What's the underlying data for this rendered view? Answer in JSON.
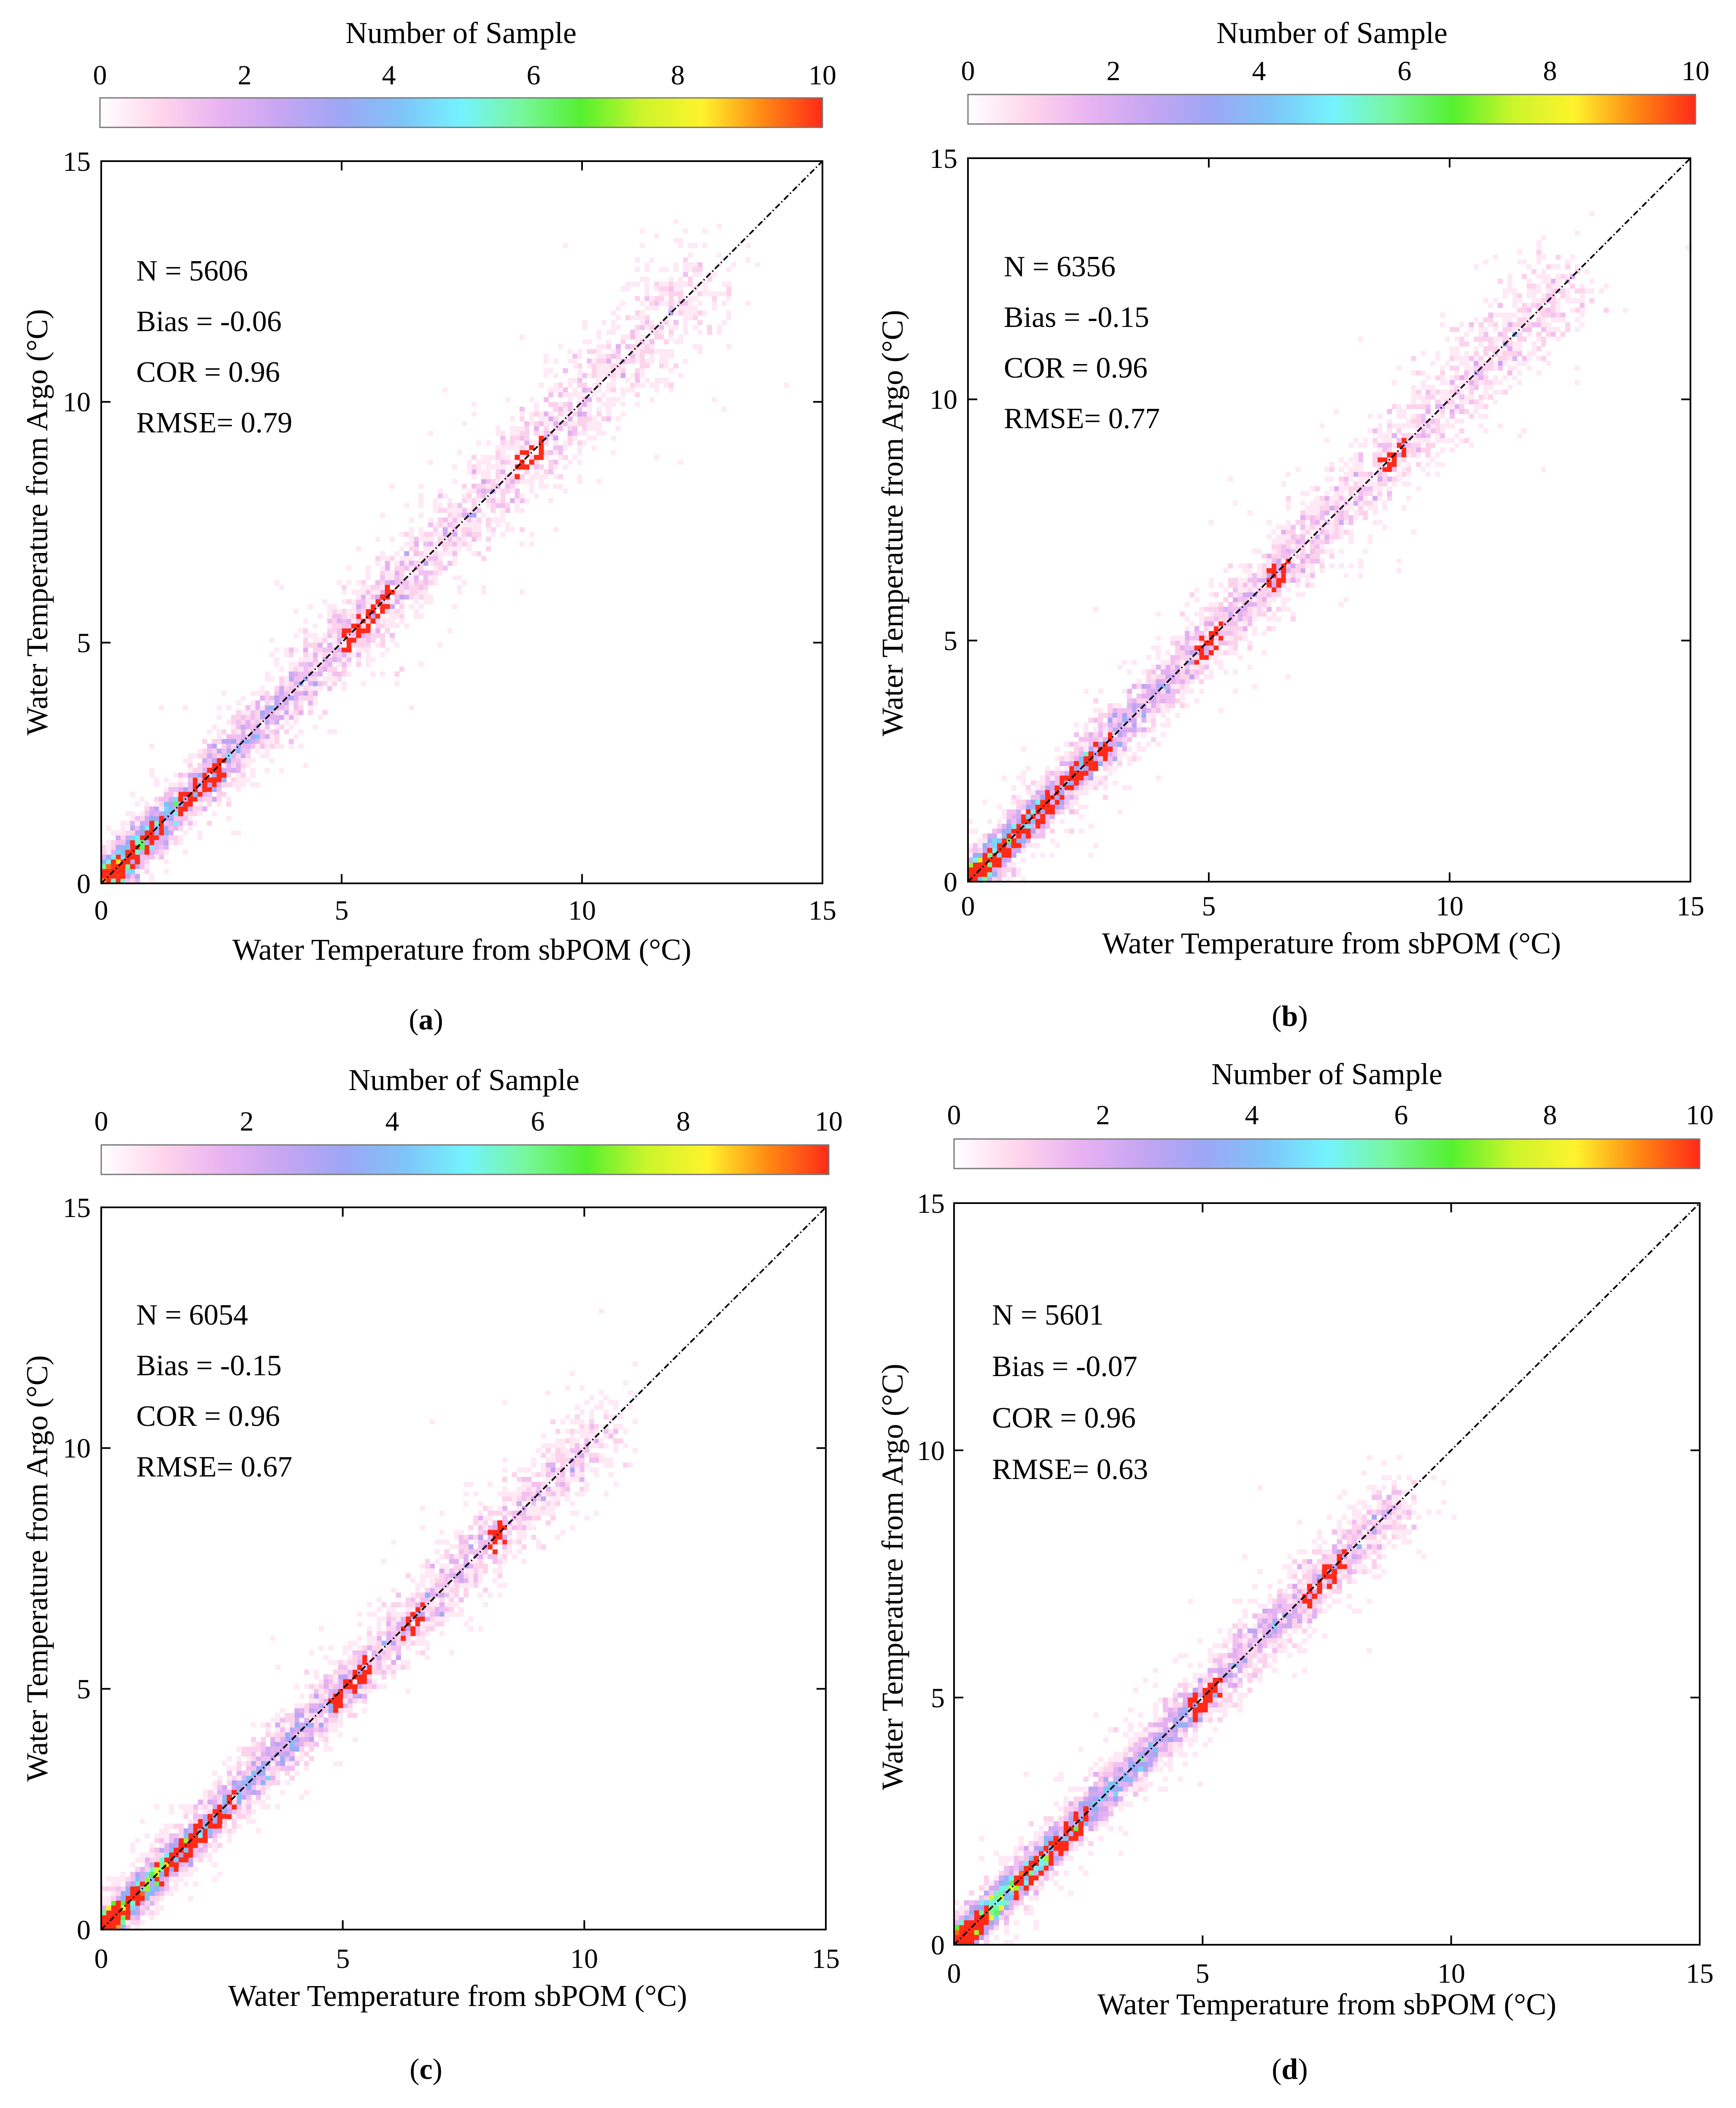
{
  "colorbar": {
    "title": "Number of Sample",
    "ticks": [
      "0",
      "2",
      "4",
      "6",
      "8",
      "10"
    ],
    "range": [
      0,
      10
    ],
    "colors": [
      "#ffffff",
      "#ffd6ec",
      "#e9b3f2",
      "#c6a6f2",
      "#9ea6f5",
      "#7fc4f8",
      "#74f3ff",
      "#77f79c",
      "#55f02f",
      "#ccf52b",
      "#fff32c",
      "#ff8a13",
      "#ff2a18"
    ]
  },
  "chart_data": [
    {
      "id": "a",
      "type": "heatmap",
      "panel_label": "a",
      "xlabel": "Water Temperature from sbPOM (°C)",
      "ylabel": "Water Temperature from Argo (°C)",
      "xlim": [
        0,
        15
      ],
      "ylim": [
        0,
        15
      ],
      "xticks": [
        "0",
        "5",
        "10",
        "15"
      ],
      "yticks": [
        "0",
        "5",
        "10",
        "15"
      ],
      "reference_line": "1:1",
      "stats": [
        "N = 5606",
        "Bias = -0.06",
        "COR = 0.96",
        "RMSE= 0.79"
      ],
      "distribution": {
        "max_t": 12.6,
        "spread": 0.6,
        "red_segments": [
          [
            0.2,
            1.2
          ],
          [
            1.6,
            2.5
          ],
          [
            5.0,
            6.0
          ],
          [
            8.7,
            9.1
          ]
        ]
      }
    },
    {
      "id": "b",
      "type": "heatmap",
      "panel_label": "b",
      "xlabel": "Water Temperature from sbPOM (°C)",
      "ylabel": "Water Temperature from Argo (°C)",
      "xlim": [
        0,
        15
      ],
      "ylim": [
        0,
        15
      ],
      "xticks": [
        "0",
        "5",
        "10",
        "15"
      ],
      "yticks": [
        "0",
        "5",
        "10",
        "15"
      ],
      "reference_line": "1:1",
      "stats": [
        "N = 6356",
        "Bias = -0.15",
        "COR = 0.96",
        "RMSE= 0.77"
      ],
      "distribution": {
        "max_t": 12.5,
        "spread": 0.55,
        "red_segments": [
          [
            0.1,
            1.0
          ],
          [
            1.1,
            2.9
          ],
          [
            4.8,
            5.2
          ],
          [
            6.2,
            6.6
          ],
          [
            8.6,
            9.0
          ]
        ]
      }
    },
    {
      "id": "c",
      "type": "heatmap",
      "panel_label": "c",
      "xlabel": "Water Temperature from sbPOM (°C)",
      "ylabel": "Water Temperature from Argo (°C)",
      "xlim": [
        0,
        15
      ],
      "ylim": [
        0,
        15
      ],
      "xticks": [
        "0",
        "5",
        "10",
        "15"
      ],
      "yticks": [
        "0",
        "5",
        "10",
        "15"
      ],
      "reference_line": "1:1",
      "stats": [
        "N = 6054",
        "Bias = -0.15",
        "COR = 0.96",
        "RMSE= 0.67"
      ],
      "distribution": {
        "max_t": 10.5,
        "spread": 0.5,
        "red_segments": [
          [
            0.0,
            0.8
          ],
          [
            1.2,
            2.7
          ],
          [
            4.8,
            5.5
          ],
          [
            6.3,
            6.6
          ],
          [
            8.0,
            8.3
          ]
        ]
      }
    },
    {
      "id": "d",
      "type": "heatmap",
      "panel_label": "d",
      "xlabel": "Water Temperature from sbPOM (°C)",
      "ylabel": "Water Temperature from Argo (°C)",
      "xlim": [
        0,
        15
      ],
      "ylim": [
        0,
        15
      ],
      "xticks": [
        "0",
        "5",
        "10",
        "15"
      ],
      "yticks": [
        "0",
        "5",
        "10",
        "15"
      ],
      "reference_line": "1:1",
      "stats": [
        "N = 5601",
        "Bias = -0.07",
        "COR = 0.96",
        "RMSE= 0.63"
      ],
      "distribution": {
        "max_t": 9.0,
        "spread": 0.45,
        "red_segments": [
          [
            0.0,
            0.6
          ],
          [
            1.2,
            2.6
          ],
          [
            4.8,
            5.3
          ],
          [
            7.0,
            7.8
          ]
        ]
      }
    }
  ]
}
